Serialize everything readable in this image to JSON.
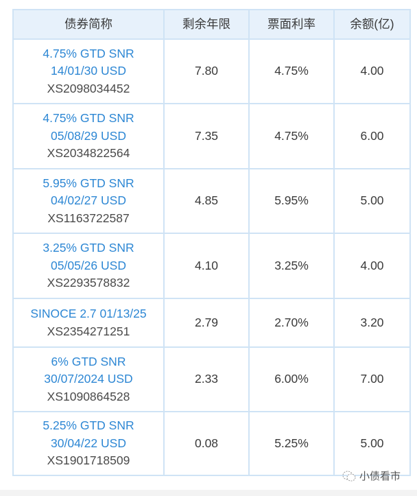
{
  "table": {
    "headers": [
      "债券简称",
      "剩余年限",
      "票面利率",
      "余额(亿)"
    ],
    "rows": [
      {
        "name_line1": "4.75% GTD SNR",
        "name_line2": "14/01/30 USD",
        "isin": "XS2098034452",
        "remaining_years": "7.80",
        "coupon": "4.75%",
        "balance": "4.00"
      },
      {
        "name_line1": "4.75% GTD SNR",
        "name_line2": "05/08/29 USD",
        "isin": "XS2034822564",
        "remaining_years": "7.35",
        "coupon": "4.75%",
        "balance": "6.00"
      },
      {
        "name_line1": "5.95% GTD SNR",
        "name_line2": "04/02/27 USD",
        "isin": "XS1163722587",
        "remaining_years": "4.85",
        "coupon": "5.95%",
        "balance": "5.00"
      },
      {
        "name_line1": "3.25% GTD SNR",
        "name_line2": "05/05/26 USD",
        "isin": "XS2293578832",
        "remaining_years": "4.10",
        "coupon": "3.25%",
        "balance": "4.00"
      },
      {
        "name_line1": "SINOCE 2.7 01/13/25",
        "name_line2": "",
        "isin": "XS2354271251",
        "remaining_years": "2.79",
        "coupon": "2.70%",
        "balance": "3.20"
      },
      {
        "name_line1": "6% GTD SNR",
        "name_line2": "30/07/2024 USD",
        "isin": "XS1090864528",
        "remaining_years": "2.33",
        "coupon": "6.00%",
        "balance": "7.00"
      },
      {
        "name_line1": "5.25% GTD SNR",
        "name_line2": "30/04/22 USD",
        "isin": "XS1901718509",
        "remaining_years": "0.08",
        "coupon": "5.25%",
        "balance": "5.00"
      }
    ]
  },
  "watermark": {
    "text": "小债看市",
    "icon": "wechat-icon"
  },
  "colors": {
    "link": "#2d87d4",
    "header_bg": "#e7f1fb",
    "border": "#cfe3f5"
  }
}
